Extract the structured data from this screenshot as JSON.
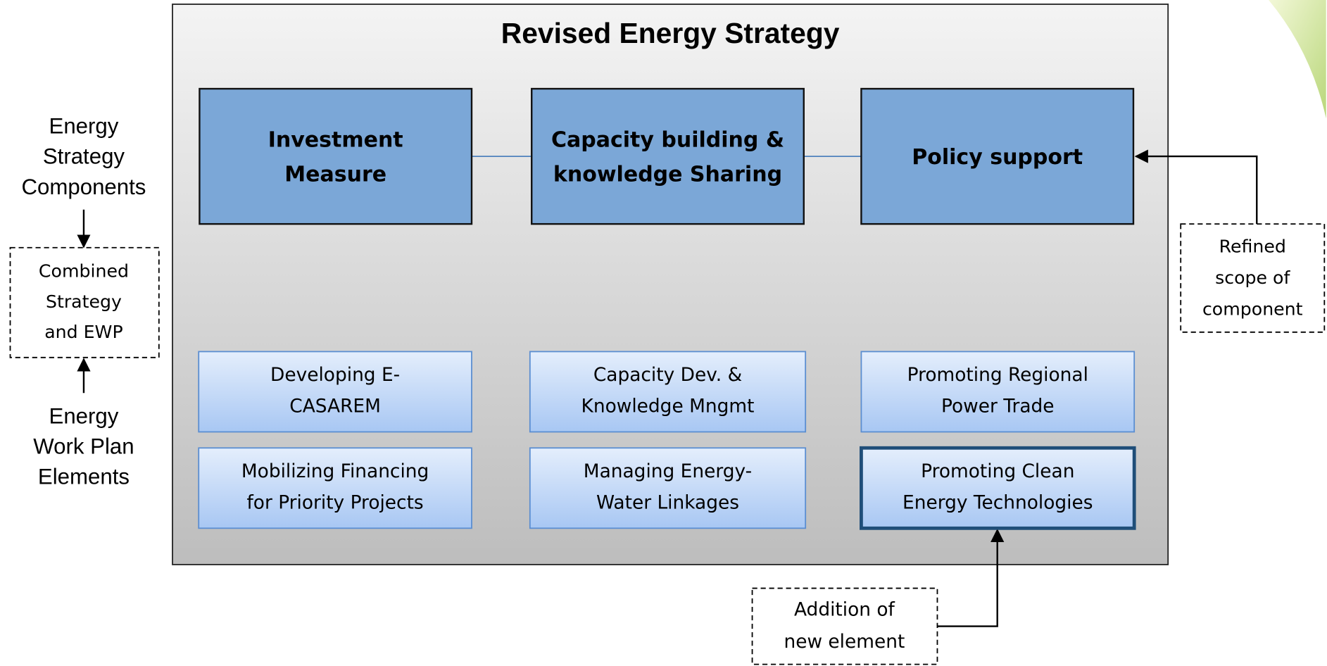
{
  "title": "Revised Energy Strategy",
  "components": [
    {
      "lines": [
        "Investment",
        "Measure"
      ]
    },
    {
      "lines": [
        "Capacity building &",
        "knowledge Sharing"
      ]
    },
    {
      "lines": [
        "Policy support"
      ]
    }
  ],
  "elements": [
    {
      "lines": [
        "Developing E-",
        "CASAREM"
      ]
    },
    {
      "lines": [
        "Capacity Dev. &",
        "Knowledge Mngmt"
      ]
    },
    {
      "lines": [
        "Promoting Regional",
        "Power Trade"
      ]
    },
    {
      "lines": [
        "Mobilizing Financing",
        "for Priority Projects"
      ]
    },
    {
      "lines": [
        "Managing Energy-",
        "Water Linkages"
      ]
    },
    {
      "lines": [
        "Promoting Clean",
        "Energy Technologies"
      ]
    }
  ],
  "legend": {
    "top": [
      "Energy",
      "Strategy",
      "Components"
    ],
    "middle": [
      "Combined",
      "Strategy",
      "and EWP"
    ],
    "bottom": [
      "Energy",
      "Work Plan",
      "Elements"
    ]
  },
  "annotations": {
    "refined": [
      "Refined",
      "scope of",
      "component"
    ],
    "addition": [
      "Addition of",
      "new element"
    ]
  }
}
